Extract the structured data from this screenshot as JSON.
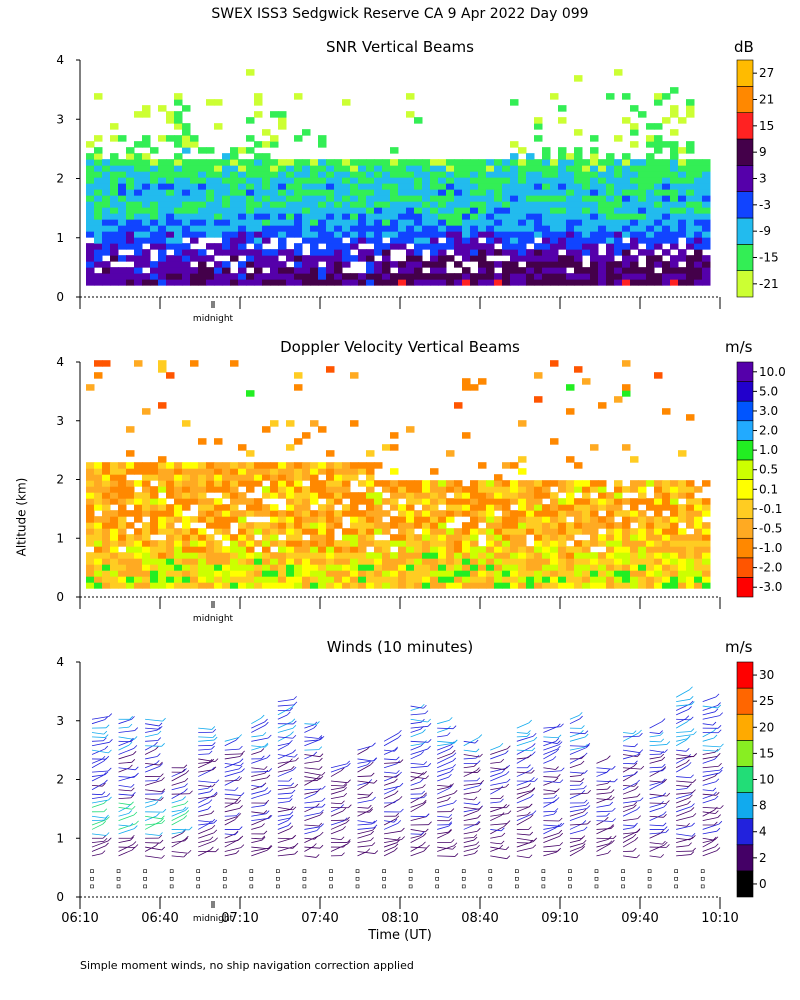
{
  "title": "SWEX ISS3 Sedgwick Reserve CA   9 Apr 2022 Day 099",
  "ylabel": "Altitude (km)",
  "xlabel": "Time (UT)",
  "midnight_label": "midnight",
  "footnote": "Simple moment winds, no ship navigation correction applied",
  "colors": {
    "snr": [
      "#ccff33",
      "#33ee55",
      "#22bbee",
      "#1144ff",
      "#5500aa",
      "#44004a",
      "#ff2222",
      "#ff8800",
      "#ffbb00"
    ],
    "doppler": [
      "#ff0000",
      "#ff5500",
      "#ff8800",
      "#ffaa22",
      "#ffcc22",
      "#ffff00",
      "#ccff00",
      "#22ee22",
      "#22aaff",
      "#0055ff",
      "#2200cc",
      "#5500aa",
      "#220022"
    ],
    "wind": [
      "#000000",
      "#440066",
      "#2222dd",
      "#11aaee",
      "#22dd77",
      "#88ee22",
      "#ffaa00",
      "#ff6600",
      "#ff0000"
    ]
  },
  "chart_data": [
    {
      "type": "heatmap",
      "title": "SNR Vertical Beams",
      "ylabel": "Altitude (km)",
      "ylim": [
        0,
        4
      ],
      "yticks": [
        "0",
        "1",
        "2",
        "3",
        "4"
      ],
      "xlim": [
        "06:10",
        "10:10"
      ],
      "colorbar": {
        "unit": "dB",
        "labels": [
          "-21",
          "-15",
          "-9",
          "-3",
          "3",
          "9",
          "15",
          "21",
          "27"
        ]
      },
      "profile": [
        {
          "altitude_km": 0.3,
          "snr_db": 4
        },
        {
          "altitude_km": 0.6,
          "snr_db": 2
        },
        {
          "altitude_km": 0.9,
          "snr_db": -2
        },
        {
          "altitude_km": 1.2,
          "snr_db": -8
        },
        {
          "altitude_km": 1.5,
          "snr_db": -11
        },
        {
          "altitude_km": 1.8,
          "snr_db": -10
        },
        {
          "altitude_km": 2.1,
          "snr_db": -14
        },
        {
          "altitude_km": 2.5,
          "snr_db": -17
        },
        {
          "altitude_km": 3.0,
          "snr_db": -19
        },
        {
          "altitude_km": 3.5,
          "snr_db": -20
        }
      ]
    },
    {
      "type": "heatmap",
      "title": "Doppler Velocity Vertical Beams",
      "ylabel": "Altitude (km)",
      "ylim": [
        0,
        4
      ],
      "yticks": [
        "0",
        "1",
        "2",
        "3",
        "4"
      ],
      "xlim": [
        "06:10",
        "10:10"
      ],
      "colorbar": {
        "unit": "m/s",
        "labels": [
          "-3.0",
          "-2.0",
          "-1.0",
          "-0.5",
          "-0.1",
          "0.1",
          "0.5",
          "1.0",
          "2.0",
          "3.0",
          "5.0",
          "10.0"
        ]
      },
      "profile": [
        {
          "altitude_km": 0.3,
          "velocity_ms": -0.1
        },
        {
          "altitude_km": 0.8,
          "velocity_ms": -0.3
        },
        {
          "altitude_km": 1.3,
          "velocity_ms": -0.7
        },
        {
          "altitude_km": 1.8,
          "velocity_ms": -0.6
        },
        {
          "altitude_km": 2.2,
          "velocity_ms": -0.8
        },
        {
          "altitude_km": 2.6,
          "velocity_ms": -1.2
        },
        {
          "altitude_km": 3.2,
          "velocity_ms": -1.0
        }
      ]
    },
    {
      "type": "scatter",
      "title": "Winds (10 minutes)",
      "ylabel": "Altitude (km)",
      "xlabel": "Time (UT)",
      "ylim": [
        0,
        4
      ],
      "yticks": [
        "0",
        "1",
        "2",
        "3",
        "4"
      ],
      "xlim": [
        "06:10",
        "10:10"
      ],
      "xticks": [
        "06:10",
        "06:40",
        "07:10",
        "07:40",
        "08:10",
        "08:40",
        "09:10",
        "09:40",
        "10:10"
      ],
      "colorbar": {
        "unit": "m/s",
        "labels": [
          "0",
          "2",
          "4",
          "8",
          "10",
          "15",
          "20",
          "25",
          "30"
        ]
      },
      "profile_times": [
        "06:10",
        "06:20",
        "06:30",
        "06:40",
        "06:50",
        "07:00",
        "07:10",
        "07:20",
        "07:30",
        "07:40",
        "07:50",
        "08:00",
        "08:10",
        "08:20",
        "08:30",
        "08:40",
        "08:50",
        "09:00",
        "09:10",
        "09:20",
        "09:30",
        "09:40",
        "09:50",
        "10:00"
      ]
    }
  ]
}
